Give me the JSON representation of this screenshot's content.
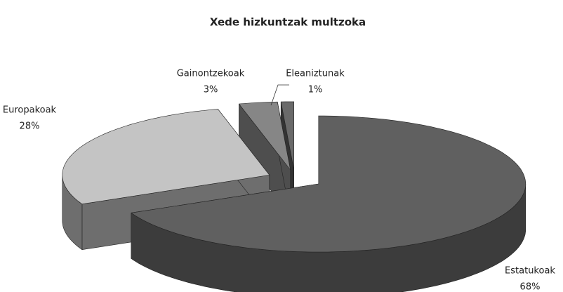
{
  "chart_data": {
    "type": "pie",
    "title": "Xede hizkuntzak multzoka",
    "categories": [
      "Estatukoak",
      "Europakoak",
      "Gainontzekoak",
      "Eleaniztunak"
    ],
    "values": [
      68,
      28,
      3,
      1
    ],
    "value_labels": [
      "68%",
      "28%",
      "3%",
      "1%"
    ],
    "colors": [
      "#606060",
      "#c4c4c4",
      "#868686",
      "#6a6a6a"
    ],
    "side_colors": [
      "#3c3c3c",
      "#6e6e6e",
      "#4e4e4e",
      "#333333"
    ]
  }
}
